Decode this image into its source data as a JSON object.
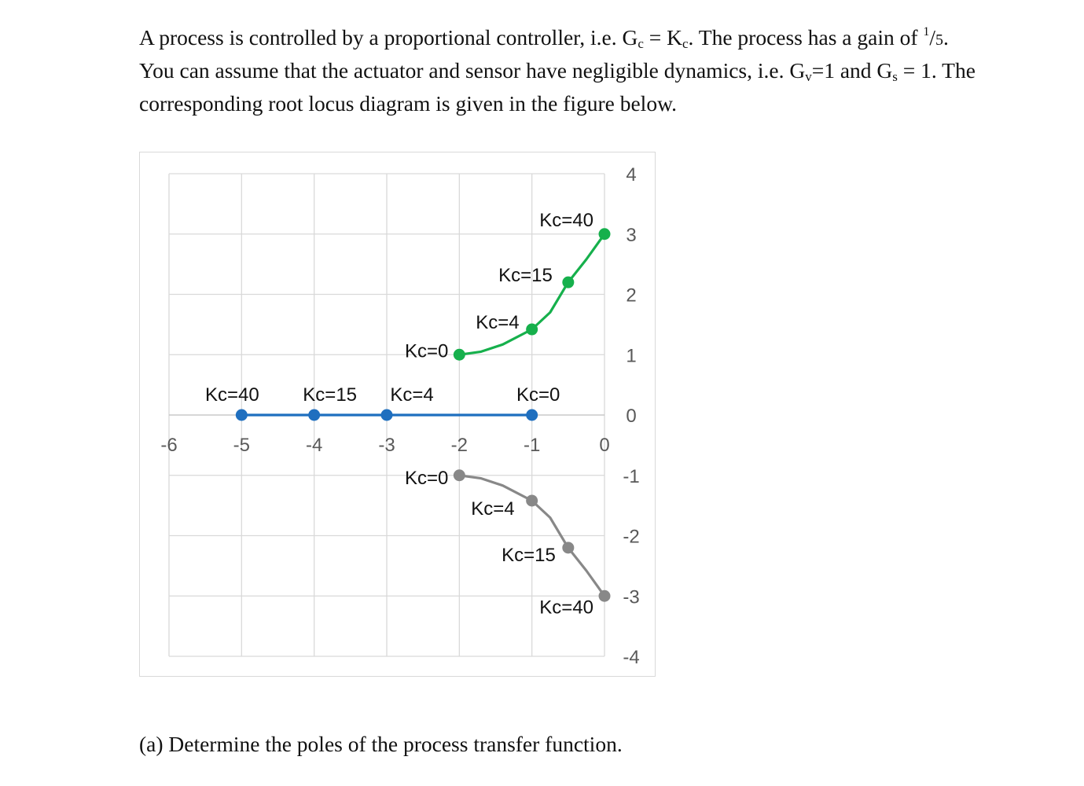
{
  "problem": {
    "t1": "A process is controlled by a proportional controller, i.e. G",
    "t1_sub_c": "c",
    "t1b": " = K",
    "t1_sub_c2": "c",
    "t1c": ". The process has a gain of ",
    "frac_num": "1",
    "frac_slash": "/",
    "frac_den": "5",
    "t1d": ".",
    "t2": "You can assume that the actuator and sensor have negligible dynamics, i.e. G",
    "t2_sub_v": "v",
    "t2b": "=1 and G",
    "t2_sub_s": "s",
    "t2c": " = 1. The",
    "t3": "corresponding root locus diagram is given in the figure below."
  },
  "question": "(a) Determine the poles of the process transfer function.",
  "chart_data": {
    "type": "scatter",
    "xlim": [
      -6,
      0
    ],
    "ylim": [
      -4,
      4
    ],
    "x_ticks": [
      "-6",
      "-5",
      "-4",
      "-3",
      "-2",
      "-1",
      "0"
    ],
    "y_ticks": [
      "4",
      "3",
      "2",
      "1",
      "0",
      "-1",
      "-2",
      "-3",
      "-4"
    ],
    "grid": true,
    "series": [
      {
        "color": "#1f6fbf",
        "curve": [
          [
            -5,
            0
          ],
          [
            -1,
            0
          ]
        ],
        "points": [
          {
            "x": -5,
            "y": 0,
            "label": "Kc=40"
          },
          {
            "x": -4,
            "y": 0,
            "label": "Kc=15"
          },
          {
            "x": -3,
            "y": 0,
            "label": "Kc=4"
          },
          {
            "x": -1,
            "y": 0,
            "label": "Kc=0"
          }
        ]
      },
      {
        "color": "#16b04c",
        "curve": [
          [
            -2,
            1
          ],
          [
            -1.7,
            1.05
          ],
          [
            -1.4,
            1.17
          ],
          [
            -1,
            1.42
          ],
          [
            -0.75,
            1.7
          ],
          [
            -0.5,
            2.2
          ],
          [
            -0.25,
            2.58
          ],
          [
            0,
            3
          ]
        ],
        "points": [
          {
            "x": -2,
            "y": 1,
            "label": "Kc=0"
          },
          {
            "x": -1,
            "y": 1.42,
            "label": "Kc=4"
          },
          {
            "x": -0.5,
            "y": 2.2,
            "label": "Kc=15"
          },
          {
            "x": 0,
            "y": 3,
            "label": "Kc=40"
          }
        ]
      },
      {
        "color": "#888888",
        "curve": [
          [
            -2,
            -1
          ],
          [
            -1.7,
            -1.05
          ],
          [
            -1.4,
            -1.17
          ],
          [
            -1,
            -1.42
          ],
          [
            -0.75,
            -1.7
          ],
          [
            -0.5,
            -2.2
          ],
          [
            -0.25,
            -2.58
          ],
          [
            0,
            -3
          ]
        ],
        "points": [
          {
            "x": -2,
            "y": -1,
            "label": "Kc=0"
          },
          {
            "x": -1,
            "y": -1.42,
            "label": "Kc=4"
          },
          {
            "x": -0.5,
            "y": -2.2,
            "label": "Kc=15"
          },
          {
            "x": 0,
            "y": -3,
            "label": "Kc=40"
          }
        ]
      }
    ]
  }
}
